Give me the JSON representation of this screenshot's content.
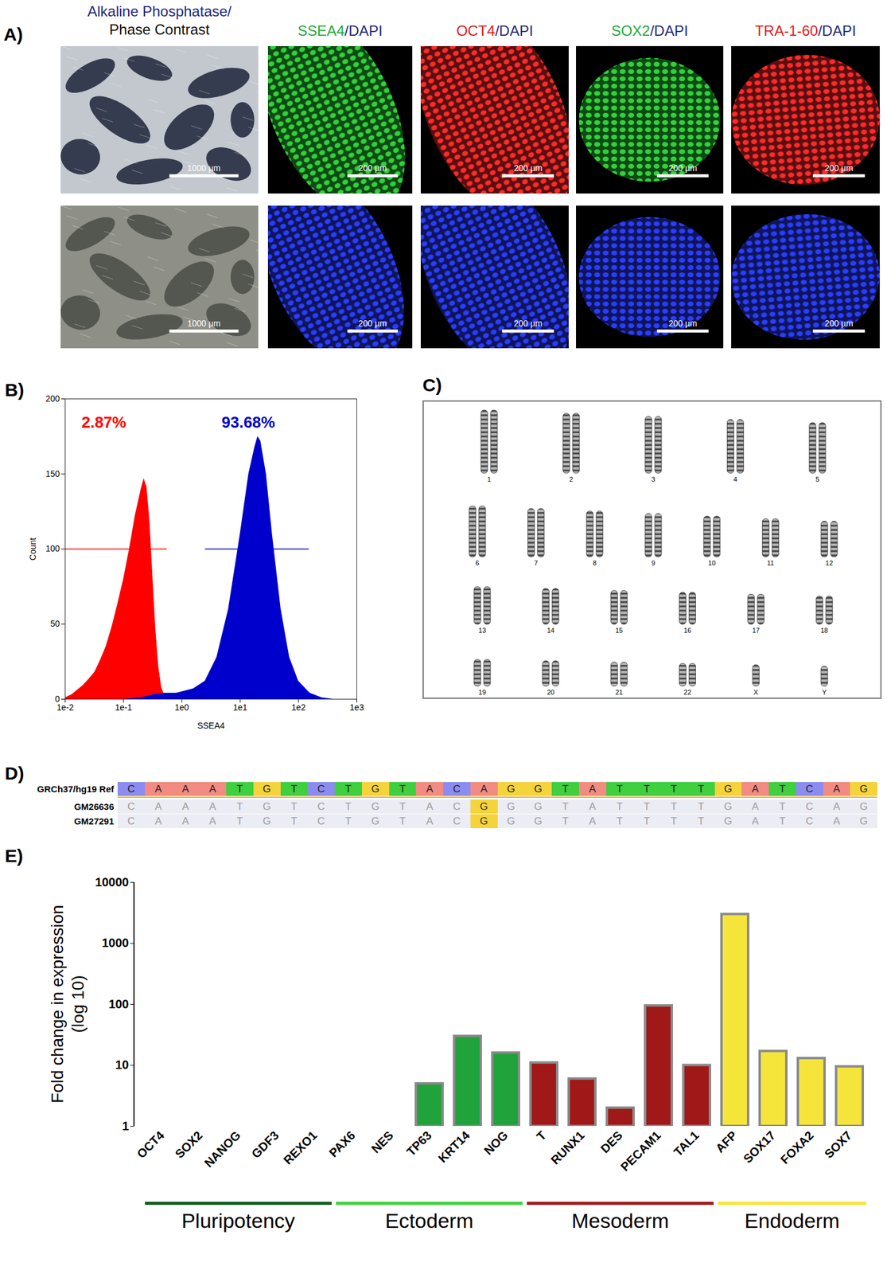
{
  "panel_a": {
    "label": "A)",
    "columns": [
      {
        "type": "brightfield",
        "header": [
          [
            {
              "text": "Alkaline Phosphatase/",
              "color": "#1f2a7a"
            }
          ],
          [
            {
              "text": "Phase Contrast",
              "color": "#111111"
            }
          ]
        ],
        "scale_bar": "1000 µm",
        "images": [
          {
            "background": "#c3c8cf",
            "color": "#1d2338"
          },
          {
            "background": "#8e8f87",
            "color": "#4a4c46"
          }
        ]
      },
      {
        "type": "fluorescence",
        "header": [
          [
            {
              "text": "SSEA4",
              "color": "#1faa3c"
            },
            {
              "text": "/DAPI",
              "color": "#1f2a7a"
            }
          ]
        ],
        "scale_bar": "200 µm",
        "images": [
          {
            "color": "#2fd13a"
          },
          {
            "color": "#2a3cff"
          }
        ]
      },
      {
        "type": "fluorescence",
        "header": [
          [
            {
              "text": "OCT4",
              "color": "#e01b1b"
            },
            {
              "text": "/DAPI",
              "color": "#1f2a7a"
            }
          ]
        ],
        "scale_bar": "200 µm",
        "images": [
          {
            "color": "#ff2a2a"
          },
          {
            "color": "#2a3cff"
          }
        ]
      },
      {
        "type": "fluorescence",
        "header": [
          [
            {
              "text": "SOX2",
              "color": "#1faa3c"
            },
            {
              "text": "/DAPI",
              "color": "#1f2a7a"
            }
          ]
        ],
        "scale_bar": "200 µm",
        "images": [
          {
            "color": "#2fd13a"
          },
          {
            "color": "#2a3cff"
          }
        ]
      },
      {
        "type": "fluorescence",
        "header": [
          [
            {
              "text": "TRA-1-60",
              "color": "#e01b1b"
            },
            {
              "text": "/DAPI",
              "color": "#1f2a7a"
            }
          ]
        ],
        "scale_bar": "200 µm",
        "images": [
          {
            "color": "#ff2a2a"
          },
          {
            "color": "#2a3cff"
          }
        ]
      }
    ]
  },
  "chart_data": [
    {
      "type": "area",
      "title": "B)",
      "xlabel": "SSEA4",
      "ylabel": "Count",
      "log": "x",
      "xlim": [
        0.01,
        1000
      ],
      "xticks": [
        {
          "value": 0.01,
          "label": "1e-2"
        },
        {
          "value": 0.1,
          "label": "1e-1"
        },
        {
          "value": 1,
          "label": "1e0"
        },
        {
          "value": 10,
          "label": "1e1"
        },
        {
          "value": 100,
          "label": "1e2"
        },
        {
          "value": 1000,
          "label": "1e3"
        }
      ],
      "ylim": [
        0,
        200
      ],
      "yticks": [
        0,
        50,
        100,
        150,
        200
      ],
      "series": [
        {
          "name": "2.87%",
          "color": "#ff0000",
          "x": [
            0.01,
            0.013,
            0.016,
            0.02,
            0.025,
            0.032,
            0.04,
            0.05,
            0.063,
            0.079,
            0.1,
            0.126,
            0.158,
            0.2,
            0.224,
            0.251,
            0.282,
            0.316,
            0.355,
            0.398,
            0.447,
            0.5,
            0.56
          ],
          "values": [
            1,
            3,
            6,
            9,
            13,
            18,
            26,
            35,
            48,
            63,
            80,
            100,
            122,
            140,
            147,
            141,
            118,
            82,
            47,
            22,
            8,
            3,
            0
          ],
          "gate": [
            0.01,
            0.55
          ],
          "gate_y": 100
        },
        {
          "name": "93.68%",
          "color": "#0000cc",
          "x": [
            0.1,
            0.2,
            0.32,
            0.5,
            0.8,
            1,
            1.58,
            2.5,
            3.98,
            6.3,
            10,
            14,
            17.8,
            20,
            22.4,
            28,
            35.5,
            50,
            70,
            100,
            158,
            251,
            398
          ],
          "values": [
            0,
            1,
            3,
            4,
            4,
            5,
            7,
            12,
            28,
            60,
            110,
            150,
            168,
            175,
            172,
            150,
            110,
            60,
            28,
            12,
            4,
            1,
            0
          ],
          "gate": [
            2.5,
            150
          ],
          "gate_y": 100
        }
      ]
    },
    {
      "type": "bar",
      "title": "E)",
      "ylabel": "Fold change in expression\n(log 10)",
      "log": "y",
      "ylim": [
        1,
        10000
      ],
      "yticks": [
        1,
        10,
        100,
        1000,
        10000
      ],
      "categories": [
        "OCT4",
        "SOX2",
        "NANOG",
        "GDF3",
        "REXO1",
        "PAX6",
        "NES",
        "TP63",
        "KRT14",
        "NOG",
        "T",
        "RUNX1",
        "DES",
        "PECAM1",
        "TAL1",
        "AFP",
        "SOX17",
        "FOXA2",
        "SOX7"
      ],
      "values": [
        null,
        null,
        null,
        null,
        null,
        null,
        null,
        5,
        30,
        16,
        11,
        6,
        2,
        95,
        10,
        3000,
        17,
        13,
        9.5
      ],
      "colors": [
        "#145a1e",
        "#145a1e",
        "#145a1e",
        "#145a1e",
        "#145a1e",
        "#1fa33a",
        "#1fa33a",
        "#1fa33a",
        "#1fa33a",
        "#1fa33a",
        "#a01818",
        "#a01818",
        "#a01818",
        "#a01818",
        "#a01818",
        "#f5e53a",
        "#f5e53a",
        "#f5e53a",
        "#f5e53a"
      ],
      "groups": [
        {
          "name": "Pluripotency",
          "color": "#145a1e",
          "from": "OCT4",
          "to": "REXO1"
        },
        {
          "name": "Ectoderm",
          "color": "#3fd13f",
          "from": "PAX6",
          "to": "NOG"
        },
        {
          "name": "Mesoderm",
          "color": "#a01818",
          "from": "T",
          "to": "TAL1"
        },
        {
          "name": "Endoderm",
          "color": "#f5e53a",
          "from": "AFP",
          "to": "SOX7"
        }
      ]
    }
  ],
  "panel_c": {
    "label": "C)",
    "rows": [
      [
        {
          "label": "1",
          "copies": 2
        },
        {
          "label": "2",
          "copies": 2
        },
        {
          "label": "3",
          "copies": 2
        },
        {
          "label": "4",
          "copies": 2
        },
        {
          "label": "5",
          "copies": 2
        }
      ],
      [
        {
          "label": "6",
          "copies": 2
        },
        {
          "label": "7",
          "copies": 2
        },
        {
          "label": "8",
          "copies": 2
        },
        {
          "label": "9",
          "copies": 2
        },
        {
          "label": "10",
          "copies": 2
        },
        {
          "label": "11",
          "copies": 2
        },
        {
          "label": "12",
          "copies": 2
        }
      ],
      [
        {
          "label": "13",
          "copies": 2
        },
        {
          "label": "14",
          "copies": 2
        },
        {
          "label": "15",
          "copies": 2
        },
        {
          "label": "16",
          "copies": 2
        },
        {
          "label": "17",
          "copies": 2
        },
        {
          "label": "18",
          "copies": 2
        }
      ],
      [
        {
          "label": "19",
          "copies": 2
        },
        {
          "label": "20",
          "copies": 2
        },
        {
          "label": "21",
          "copies": 2
        },
        {
          "label": "22",
          "copies": 2
        },
        {
          "label": "X",
          "copies": 1
        },
        {
          "label": "Y",
          "copies": 1
        }
      ]
    ]
  },
  "panel_d": {
    "label": "D)",
    "base_colors": {
      "A": "#f28b82",
      "C": "#8c8cf0",
      "G": "#f5d33b",
      "T": "#3fcf3f"
    },
    "reference": {
      "name": "GRCh37/hg19 Ref",
      "sequence": "CAAATGTCTGTACAGGTATTTTGATCAG"
    },
    "samples": [
      {
        "name": "GM26636",
        "sequence": "CAAATGTCTGTACGGGTATTTTGATCAG"
      },
      {
        "name": "GM27291",
        "sequence": "CAAATGTCTGTACGGGTATTTTGATCAG"
      }
    ]
  }
}
